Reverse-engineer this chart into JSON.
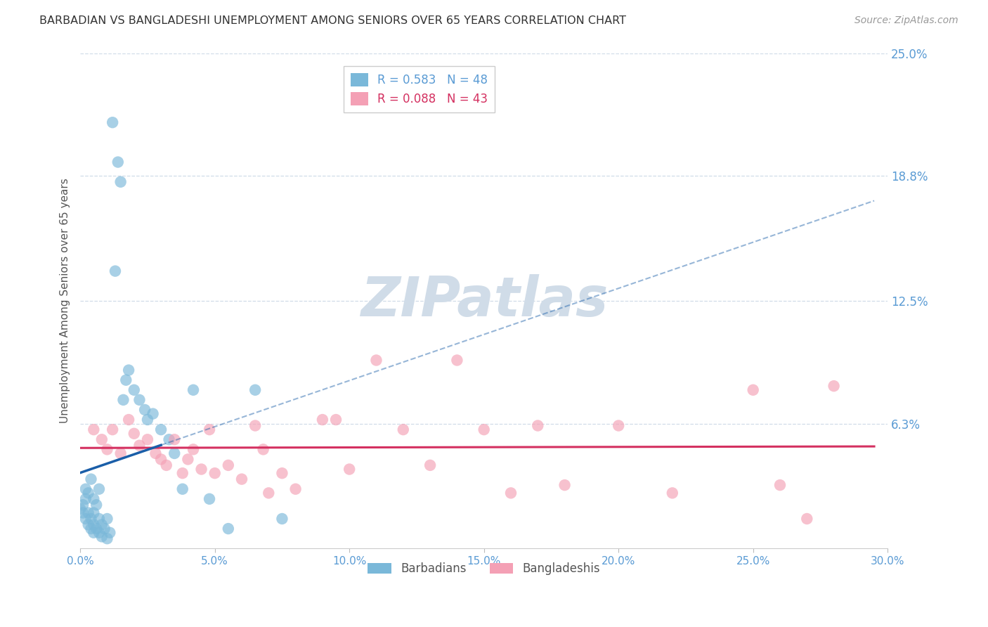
{
  "title": "BARBADIAN VS BANGLADESHI UNEMPLOYMENT AMONG SENIORS OVER 65 YEARS CORRELATION CHART",
  "source": "Source: ZipAtlas.com",
  "ylabel": "Unemployment Among Seniors over 65 years",
  "xlim": [
    0.0,
    0.3
  ],
  "ylim": [
    0.0,
    0.25
  ],
  "xtick_labels": [
    "0.0%",
    "5.0%",
    "10.0%",
    "15.0%",
    "20.0%",
    "25.0%",
    "30.0%"
  ],
  "xtick_vals": [
    0.0,
    0.05,
    0.1,
    0.15,
    0.2,
    0.25,
    0.3
  ],
  "ytick_labels_right": [
    "6.3%",
    "12.5%",
    "18.8%",
    "25.0%"
  ],
  "ytick_vals_right": [
    0.063,
    0.125,
    0.188,
    0.25
  ],
  "barbadian_R": 0.583,
  "barbadian_N": 48,
  "bangladeshi_R": 0.088,
  "bangladeshi_N": 43,
  "barbadian_color": "#7ab8d9",
  "bangladeshi_color": "#f4a0b5",
  "trendline_barbadian_color": "#1a5ea8",
  "trendline_bangladeshi_color": "#d43060",
  "watermark": "ZIPatlas",
  "watermark_color": "#d0dce8",
  "grid_color": "#d0dce8",
  "title_color": "#333333",
  "source_color": "#999999",
  "tick_color": "#5a9bd4",
  "label_color": "#555555",
  "barbadian_x": [
    0.0,
    0.001,
    0.001,
    0.002,
    0.002,
    0.002,
    0.003,
    0.003,
    0.003,
    0.004,
    0.004,
    0.004,
    0.005,
    0.005,
    0.005,
    0.005,
    0.006,
    0.006,
    0.007,
    0.007,
    0.007,
    0.008,
    0.008,
    0.009,
    0.01,
    0.01,
    0.011,
    0.012,
    0.013,
    0.014,
    0.015,
    0.016,
    0.017,
    0.018,
    0.02,
    0.022,
    0.024,
    0.025,
    0.027,
    0.03,
    0.033,
    0.035,
    0.038,
    0.042,
    0.048,
    0.055,
    0.065,
    0.075
  ],
  "barbadian_y": [
    0.02,
    0.018,
    0.022,
    0.015,
    0.025,
    0.03,
    0.012,
    0.018,
    0.028,
    0.01,
    0.015,
    0.035,
    0.008,
    0.012,
    0.018,
    0.025,
    0.01,
    0.022,
    0.008,
    0.015,
    0.03,
    0.006,
    0.012,
    0.01,
    0.005,
    0.015,
    0.008,
    0.215,
    0.14,
    0.195,
    0.185,
    0.075,
    0.085,
    0.09,
    0.08,
    0.075,
    0.07,
    0.065,
    0.068,
    0.06,
    0.055,
    0.048,
    0.03,
    0.08,
    0.025,
    0.01,
    0.08,
    0.015
  ],
  "bangladeshi_x": [
    0.005,
    0.008,
    0.01,
    0.012,
    0.015,
    0.018,
    0.02,
    0.022,
    0.025,
    0.028,
    0.03,
    0.032,
    0.035,
    0.038,
    0.04,
    0.042,
    0.045,
    0.048,
    0.05,
    0.055,
    0.06,
    0.065,
    0.068,
    0.07,
    0.075,
    0.08,
    0.09,
    0.095,
    0.1,
    0.11,
    0.12,
    0.13,
    0.14,
    0.15,
    0.16,
    0.17,
    0.18,
    0.2,
    0.22,
    0.25,
    0.26,
    0.27,
    0.28
  ],
  "bangladeshi_y": [
    0.06,
    0.055,
    0.05,
    0.06,
    0.048,
    0.065,
    0.058,
    0.052,
    0.055,
    0.048,
    0.045,
    0.042,
    0.055,
    0.038,
    0.045,
    0.05,
    0.04,
    0.06,
    0.038,
    0.042,
    0.035,
    0.062,
    0.05,
    0.028,
    0.038,
    0.03,
    0.065,
    0.065,
    0.04,
    0.095,
    0.06,
    0.042,
    0.095,
    0.06,
    0.028,
    0.062,
    0.032,
    0.062,
    0.028,
    0.08,
    0.032,
    0.015,
    0.082
  ]
}
